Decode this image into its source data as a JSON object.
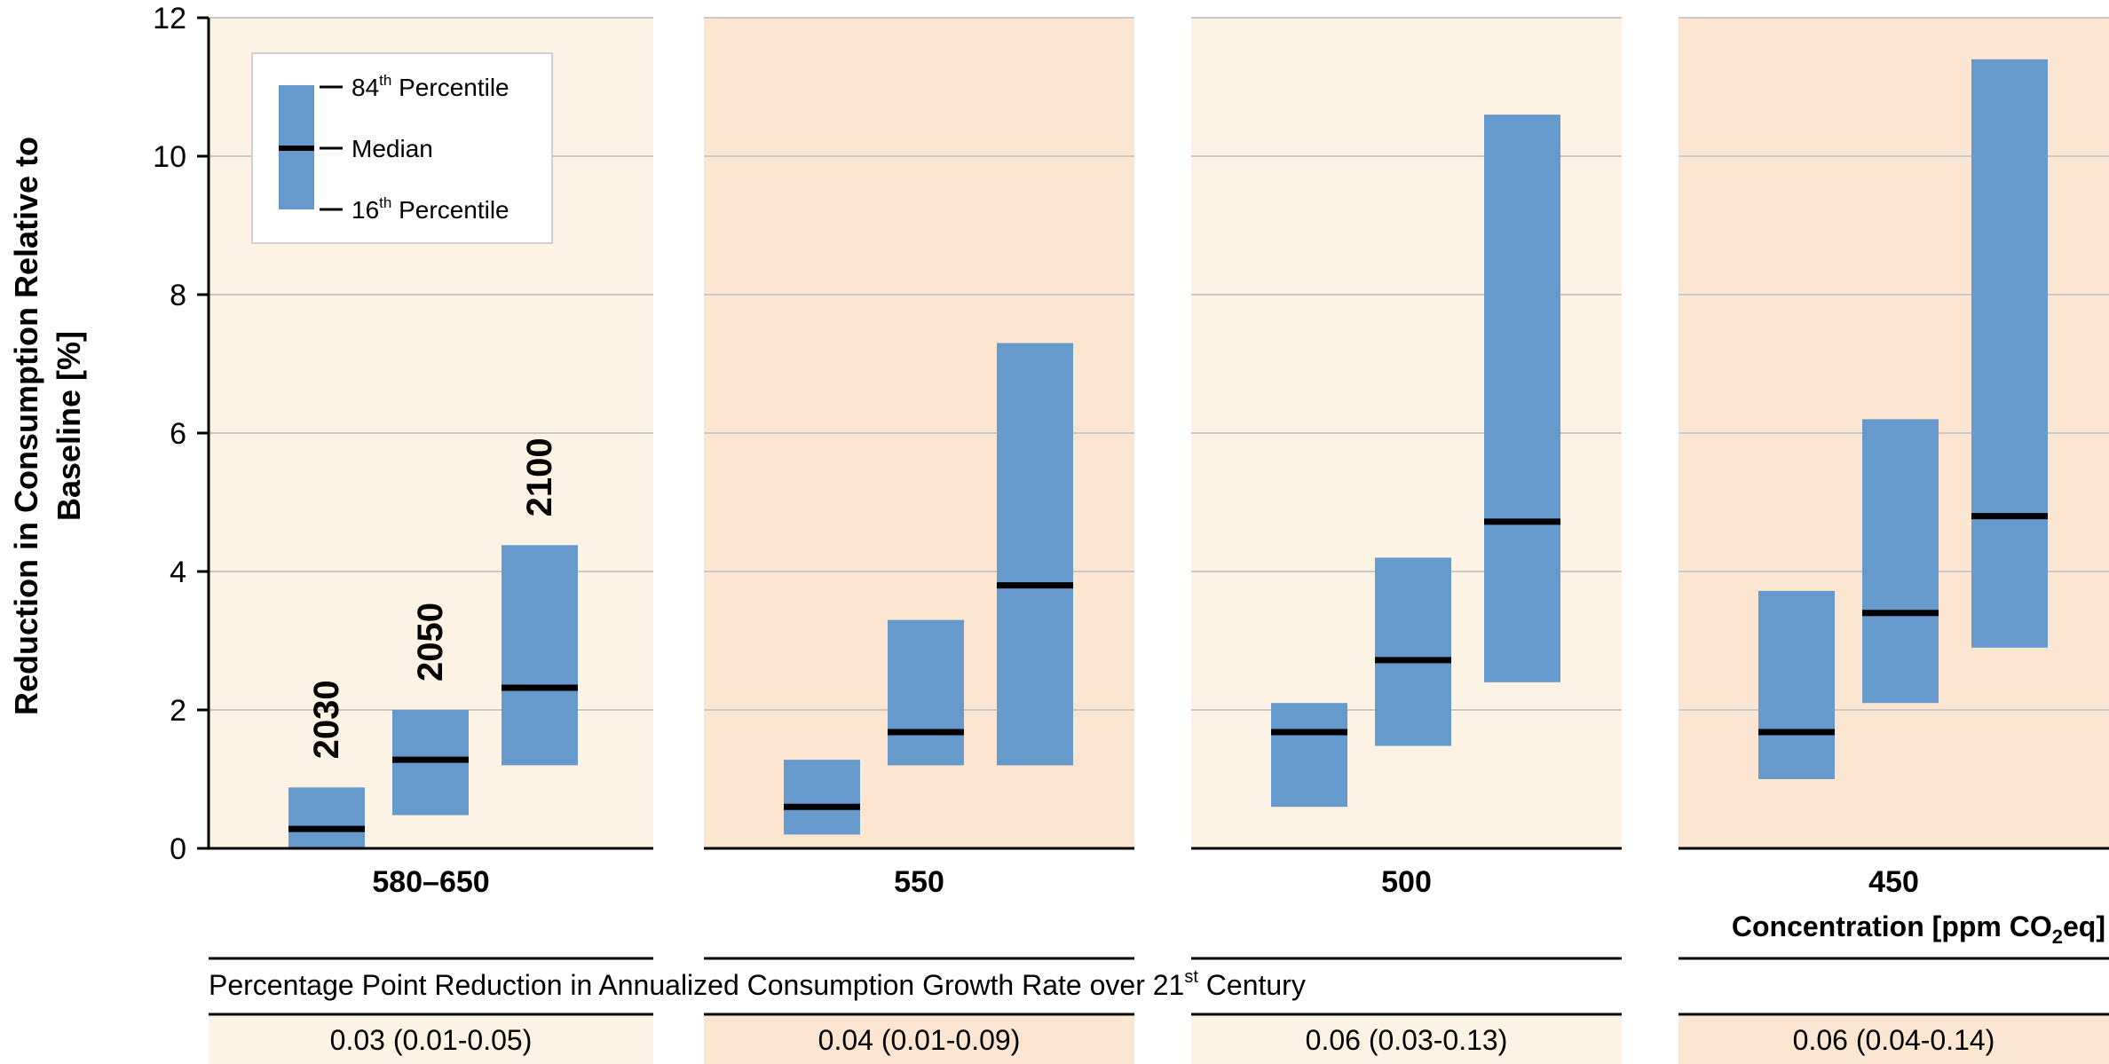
{
  "chart_data": {
    "type": "bar",
    "subtype": "floating-range",
    "ylabel_line1": "Reduction in Consumption Relative to",
    "ylabel_line2": "Baseline [%]",
    "ylim": [
      0,
      12
    ],
    "yticks": [
      "0",
      "2",
      "4",
      "6",
      "8",
      "10",
      "12"
    ],
    "grid": true,
    "xaxis_title_prefix": "Concentration [ppm CO",
    "xaxis_title_sub": "2",
    "xaxis_title_suffix": "eq]",
    "year_labels": [
      "2030",
      "2050",
      "2100"
    ],
    "legend": {
      "position": "top-left",
      "p84_label": "84",
      "p84_sup": "th",
      "p84_suffix": " Percentile",
      "median_label": "Median",
      "p16_label": "16",
      "p16_sup": "th",
      "p16_suffix": " Percentile"
    },
    "groups": [
      {
        "label": "580–650",
        "bg_color": "#fdf3e4",
        "bars": [
          {
            "year": "2030",
            "p16": 0.0,
            "median": 0.28,
            "p84": 0.88
          },
          {
            "year": "2050",
            "p16": 0.48,
            "median": 1.28,
            "p84": 2.0
          },
          {
            "year": "2100",
            "p16": 1.2,
            "median": 2.32,
            "p84": 4.38
          }
        ],
        "growth_rate": "0.03 (0.01-0.05)"
      },
      {
        "label": "550",
        "bg_color": "#fce6d1",
        "bars": [
          {
            "year": "2030",
            "p16": 0.2,
            "median": 0.6,
            "p84": 1.28
          },
          {
            "year": "2050",
            "p16": 1.2,
            "median": 1.68,
            "p84": 3.3
          },
          {
            "year": "2100",
            "p16": 1.2,
            "median": 3.8,
            "p84": 7.3
          }
        ],
        "growth_rate": "0.04 (0.01-0.09)"
      },
      {
        "label": "500",
        "bg_color": "#fdf3e4",
        "bars": [
          {
            "year": "2030",
            "p16": 0.6,
            "median": 1.68,
            "p84": 2.1
          },
          {
            "year": "2050",
            "p16": 1.48,
            "median": 2.72,
            "p84": 4.2
          },
          {
            "year": "2100",
            "p16": 2.4,
            "median": 4.72,
            "p84": 10.6
          }
        ],
        "growth_rate": "0.06 (0.03-0.13)"
      },
      {
        "label": "450",
        "bg_color": "#fce6d1",
        "bars": [
          {
            "year": "2030",
            "p16": 1.0,
            "median": 1.68,
            "p84": 3.72
          },
          {
            "year": "2050",
            "p16": 2.1,
            "median": 3.4,
            "p84": 6.2
          },
          {
            "year": "2100",
            "p16": 2.9,
            "median": 4.8,
            "p84": 11.4
          }
        ],
        "growth_rate": "0.06 (0.04-0.14)"
      }
    ],
    "growth_row_title_main": "Percentage Point Reduction in Annualized Consumption Growth Rate over 21",
    "growth_row_title_sup": "st",
    "growth_row_title_suffix": " Century",
    "colors": {
      "bar": "#6699cc",
      "median": "#000000",
      "grid": "#c8c8c8",
      "axis": "#000000"
    }
  }
}
